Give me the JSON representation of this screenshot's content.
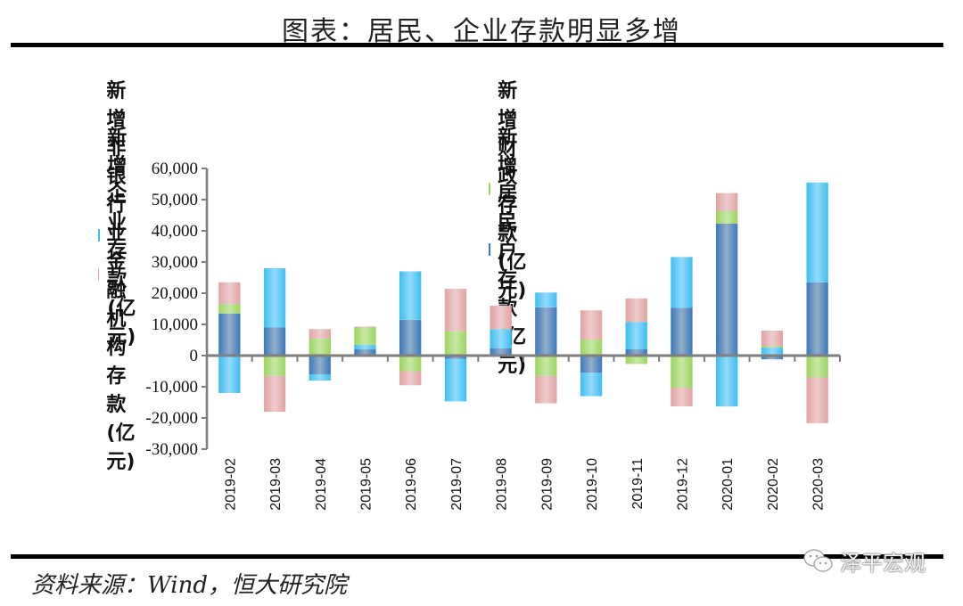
{
  "header": {
    "title": "图表：居民、企业存款明显多增"
  },
  "footer": {
    "source": "资料来源：Wind，恒大研究院",
    "watermark": "泽平宏观"
  },
  "legend": [
    {
      "key": "nonbank",
      "label": "新增非银行业金融机构存款(亿元)",
      "color": "#e0a3a3"
    },
    {
      "key": "fiscal",
      "label": "新增财政存款(亿元)",
      "color": "#9bd45e"
    },
    {
      "key": "corporate",
      "label": "新增企业存款(亿元)",
      "color": "#3dbdf2"
    },
    {
      "key": "resident",
      "label": "新增居民户存款(亿元)",
      "color": "#3a78bd"
    }
  ],
  "chart_data": {
    "type": "bar",
    "stacked": true,
    "title": "居民、企业存款明显多增",
    "xlabel": "",
    "ylabel": "",
    "ylim": [
      -30000,
      60000
    ],
    "yticks": [
      60000,
      50000,
      40000,
      30000,
      20000,
      10000,
      0,
      -10000,
      -20000,
      -30000
    ],
    "ytick_labels": [
      "60,000",
      "50,000",
      "40,000",
      "30,000",
      "20,000",
      "10,000",
      "0",
      "-10,000",
      "-20,000",
      "-30,000"
    ],
    "grid": false,
    "legend_position": "top",
    "categories": [
      "2019-02",
      "2019-03",
      "2019-04",
      "2019-05",
      "2019-06",
      "2019-07",
      "2019-08",
      "2019-09",
      "2019-10",
      "2019-11",
      "2019-12",
      "2020-01",
      "2020-02",
      "2020-03"
    ],
    "series": [
      {
        "name": "新增居民户存款(亿元)",
        "key": "resident",
        "color": "#3a78bd",
        "values": [
          13500,
          9000,
          -6000,
          2000,
          11500,
          -1000,
          2300,
          15500,
          -5500,
          2000,
          15300,
          42300,
          -1200,
          23500
        ]
      },
      {
        "name": "新增企业存款(亿元)",
        "key": "corporate",
        "color": "#3dbdf2",
        "values": [
          -12000,
          19000,
          -2000,
          1500,
          15500,
          -13700,
          6200,
          4700,
          -7500,
          8800,
          16300,
          -16300,
          2600,
          32000
        ]
      },
      {
        "name": "新增财政存款(亿元)",
        "key": "fiscal",
        "color": "#9bd45e",
        "values": [
          3000,
          -6500,
          5500,
          5500,
          -5000,
          7800,
          0,
          -6500,
          5200,
          -2700,
          -10300,
          4000,
          400,
          -7000
        ]
      },
      {
        "name": "新增非银行业金融机构存款(亿元)",
        "key": "nonbank",
        "color": "#e0a3a3",
        "values": [
          7000,
          -11500,
          3000,
          300,
          -4500,
          13600,
          7500,
          -8800,
          9300,
          7500,
          -6000,
          5800,
          5000,
          -14700
        ]
      }
    ]
  }
}
